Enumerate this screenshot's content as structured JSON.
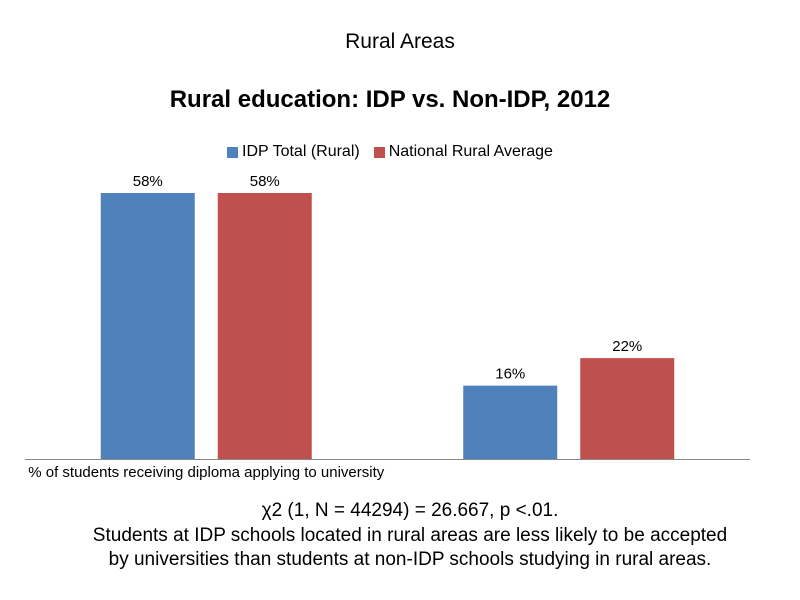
{
  "header": {
    "section_title": "Rural Areas"
  },
  "colors": {
    "series_1": "#4f81bd",
    "series_2": "#c0504d",
    "axis": "#888888"
  },
  "chart_data": {
    "type": "bar",
    "title": "Rural education: IDP vs. Non-IDP, 2012",
    "categories": [
      "% of students receiving diploma applying to university",
      ""
    ],
    "series": [
      {
        "name": "IDP Total (Rural)",
        "values": [
          58,
          16
        ],
        "labels": [
          "58%",
          "16%"
        ]
      },
      {
        "name": "National Rural Average",
        "values": [
          58,
          22
        ],
        "labels": [
          "58%",
          "22%"
        ]
      }
    ],
    "ylim": [
      0,
      60
    ],
    "unit": "%",
    "legend_position": "top",
    "grid": false
  },
  "footnote": {
    "stat_line": "χ2 (1, N = 44294) = 26.667, p <.01.",
    "line_2": "Students at IDP schools located in rural areas are less likely to be accepted",
    "line_3": "by universities than students at non-IDP schools studying in rural areas."
  }
}
